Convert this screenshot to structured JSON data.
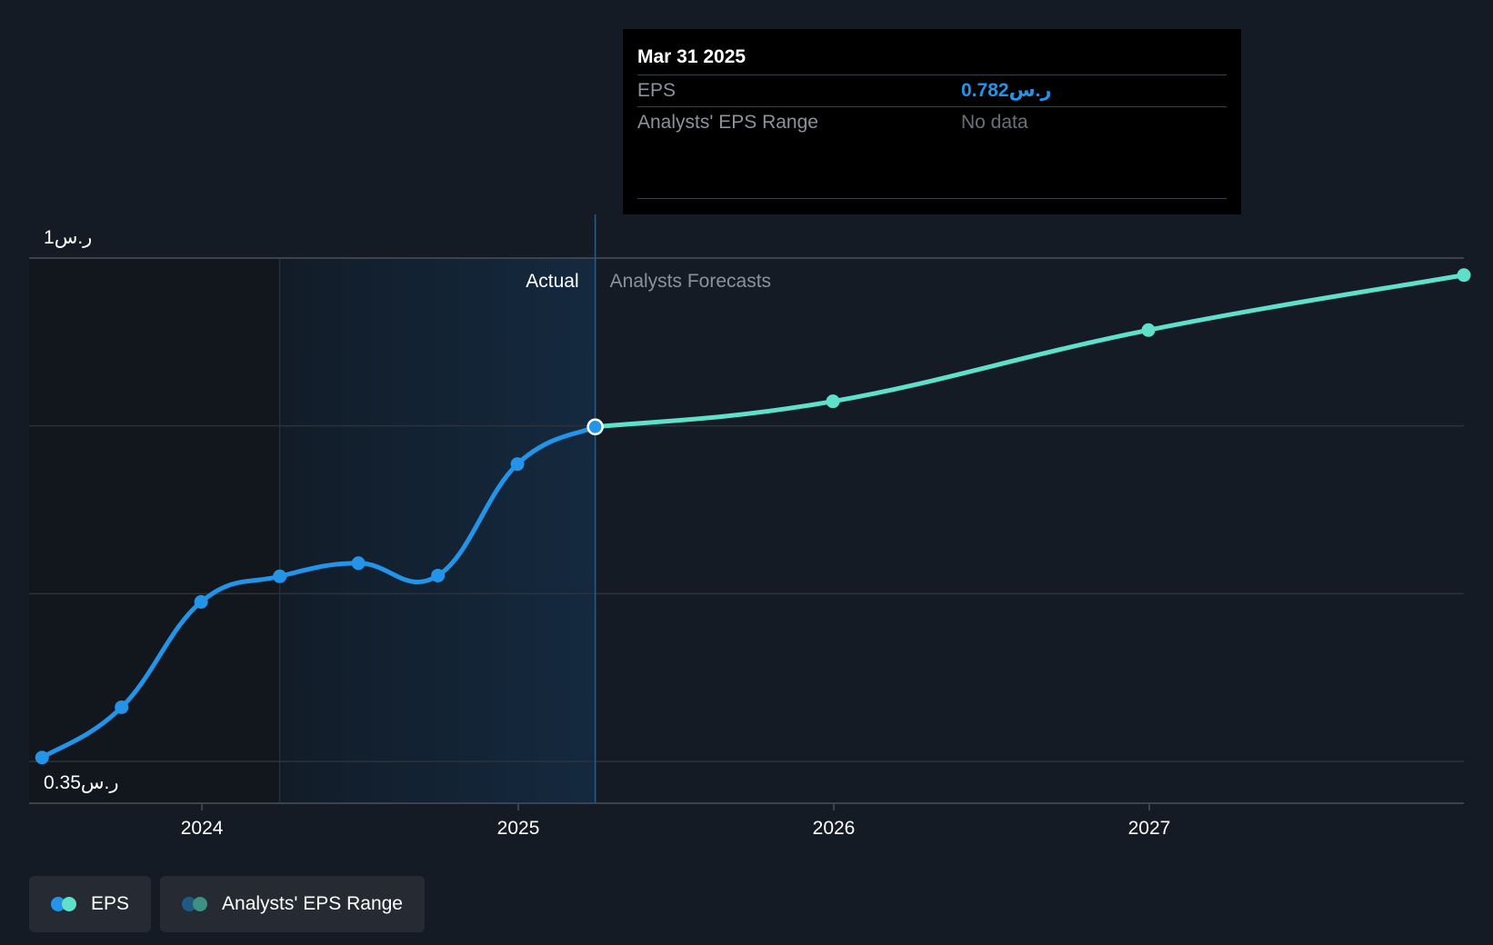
{
  "chart_data": {
    "type": "line",
    "y_labels": {
      "top": "1ر.س",
      "bottom": "0.35ر.س"
    },
    "ylim": [
      0.35,
      1
    ],
    "xlim": [
      "2023-06-15",
      "2027-12-31"
    ],
    "x_ticks": [
      "2024",
      "2025",
      "2026",
      "2027"
    ],
    "region_labels": {
      "actual": "Actual",
      "forecast": "Analysts Forecasts"
    },
    "series": [
      {
        "name": "EPS",
        "kind": "actual",
        "color": "#2394e8",
        "points": [
          {
            "x": "2023-06-30",
            "y": 0.355
          },
          {
            "x": "2023-09-30",
            "y": 0.42
          },
          {
            "x": "2023-12-31",
            "y": 0.556
          },
          {
            "x": "2024-03-31",
            "y": 0.589
          },
          {
            "x": "2024-06-30",
            "y": 0.606
          },
          {
            "x": "2024-09-30",
            "y": 0.59
          },
          {
            "x": "2024-12-31",
            "y": 0.734
          },
          {
            "x": "2025-03-31",
            "y": 0.782
          }
        ]
      },
      {
        "name": "EPS",
        "kind": "forecast",
        "color": "#5ee0cb",
        "points": [
          {
            "x": "2025-03-31",
            "y": 0.782
          },
          {
            "x": "2025-12-31",
            "y": 0.815
          },
          {
            "x": "2026-12-31",
            "y": 0.907
          },
          {
            "x": "2027-12-31",
            "y": 0.978
          }
        ]
      }
    ],
    "grid": true
  },
  "tooltip": {
    "date": "Mar 31 2025",
    "rows": [
      {
        "label": "EPS",
        "value": "0.782ر.س",
        "value_color": "#2394e8"
      },
      {
        "label": "Analysts' EPS Range",
        "value": "No data",
        "value_color": "#6b7079"
      }
    ]
  },
  "legend": [
    {
      "label": "EPS",
      "colors": [
        "#2394e8",
        "#5ee0cb"
      ]
    },
    {
      "label": "Analysts' EPS Range",
      "colors": [
        "#1f5a85",
        "#3e8f85"
      ]
    }
  ],
  "colors": {
    "background": "#151b24",
    "past_shade": "#12171e",
    "actual_band": "#132a40",
    "grid": "#2c323b"
  }
}
